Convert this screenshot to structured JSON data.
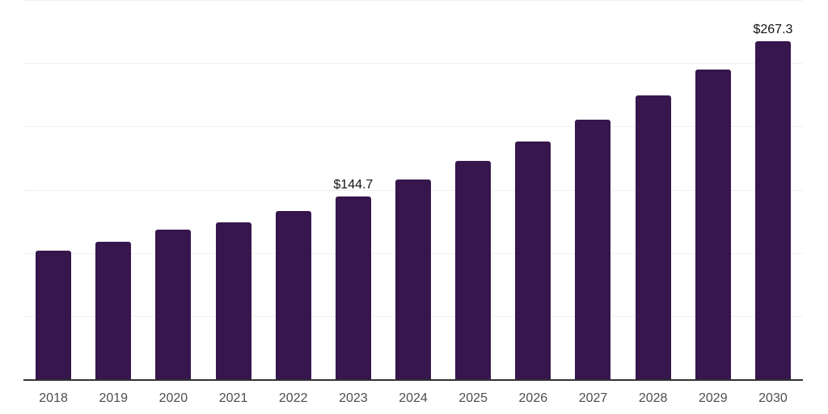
{
  "chart_data": {
    "type": "bar",
    "title": "",
    "xlabel": "",
    "ylabel": "",
    "categories": [
      "2018",
      "2019",
      "2020",
      "2021",
      "2022",
      "2023",
      "2024",
      "2025",
      "2026",
      "2027",
      "2028",
      "2029",
      "2030"
    ],
    "values": [
      101.6,
      108.7,
      118.3,
      124.2,
      132.8,
      144.7,
      158.0,
      172.4,
      188.2,
      205.4,
      224.3,
      244.9,
      267.3
    ],
    "data_labels": [
      "",
      "",
      "",
      "",
      "",
      "$144.7",
      "",
      "",
      "",
      "",
      "",
      "",
      "$267.3"
    ],
    "ylim": [
      0,
      300
    ],
    "grid_step": 50,
    "grid": true,
    "legend": false,
    "legend_position": "none"
  },
  "style": {
    "bar_color": "#36164c",
    "grid_color": "#f0f0f0",
    "axis_color": "#333333",
    "tick_label_color": "#4d4d4d",
    "data_label_color": "#141414",
    "background": "#ffffff"
  }
}
